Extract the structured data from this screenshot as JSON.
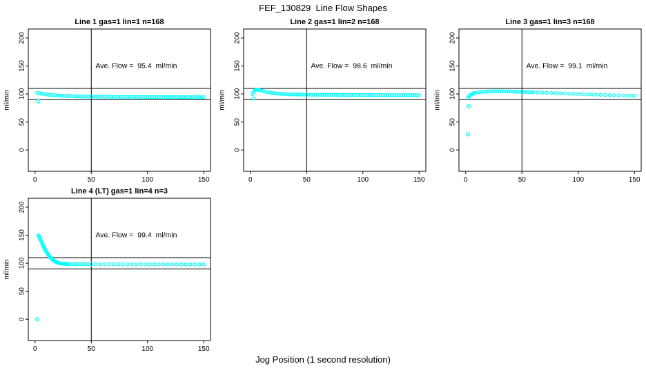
{
  "title": "FEF_130829  Line Flow Shapes",
  "xlabel": "Jog Position (1 second resolution)",
  "marker_color": "#00FFFF",
  "axis_color": "#000000",
  "chart_data": [
    {
      "type": "scatter",
      "title": "Line 1 gas=1 lin=1 n=168",
      "annotation": "Ave. Flow =  95.4  ml/min",
      "ave_flow_ml_min": 95.4,
      "ylabel": "ml/min",
      "x_ticks": [
        0,
        50,
        100,
        150
      ],
      "y_ticks": [
        0,
        50,
        100,
        150,
        200
      ],
      "xlim": [
        -6,
        156
      ],
      "ylim": [
        -38,
        216
      ],
      "hlines": [
        90,
        110
      ],
      "vline": 50,
      "points": [
        [
          2,
          102.1
        ],
        [
          4,
          101.2
        ],
        [
          6,
          100.5
        ],
        [
          8,
          99.9
        ],
        [
          10,
          99.3
        ],
        [
          12,
          98.8
        ],
        [
          14,
          98.3
        ],
        [
          16,
          97.9
        ],
        [
          18,
          97.6
        ],
        [
          20,
          97.3
        ],
        [
          22,
          97.0
        ],
        [
          24,
          96.8
        ],
        [
          26,
          96.6
        ],
        [
          28,
          96.4
        ],
        [
          30,
          96.2
        ],
        [
          32,
          96.1
        ],
        [
          34,
          96.0
        ],
        [
          36,
          95.8
        ],
        [
          38,
          95.7
        ],
        [
          40,
          95.7
        ],
        [
          42,
          95.6
        ],
        [
          44,
          95.5
        ],
        [
          46,
          95.4
        ],
        [
          48,
          95.4
        ],
        [
          50,
          95.3
        ],
        [
          52,
          95.3
        ],
        [
          54,
          95.2
        ],
        [
          56,
          95.2
        ],
        [
          58,
          95.2
        ],
        [
          60,
          95.1
        ],
        [
          62,
          95.1
        ],
        [
          64,
          95.1
        ],
        [
          66,
          95.0
        ],
        [
          68,
          95.0
        ],
        [
          70,
          95.0
        ],
        [
          72,
          95.0
        ],
        [
          74,
          94.9
        ],
        [
          76,
          94.9
        ],
        [
          78,
          95.0
        ],
        [
          80,
          94.9
        ],
        [
          82,
          94.8
        ],
        [
          84,
          94.9
        ],
        [
          86,
          94.8
        ],
        [
          88,
          94.8
        ],
        [
          90,
          94.9
        ],
        [
          92,
          94.8
        ],
        [
          94,
          94.7
        ],
        [
          96,
          94.8
        ],
        [
          98,
          94.7
        ],
        [
          100,
          94.7
        ],
        [
          102,
          94.8
        ],
        [
          104,
          94.7
        ],
        [
          106,
          94.6
        ],
        [
          108,
          94.7
        ],
        [
          110,
          94.6
        ],
        [
          112,
          94.6
        ],
        [
          114,
          94.7
        ],
        [
          116,
          94.6
        ],
        [
          118,
          94.5
        ],
        [
          120,
          94.6
        ],
        [
          122,
          94.5
        ],
        [
          124,
          94.5
        ],
        [
          126,
          94.6
        ],
        [
          128,
          94.5
        ],
        [
          130,
          94.4
        ],
        [
          132,
          94.5
        ],
        [
          134,
          94.4
        ],
        [
          136,
          94.5
        ],
        [
          138,
          94.4
        ],
        [
          140,
          94.4
        ],
        [
          142,
          94.5
        ],
        [
          144,
          94.4
        ],
        [
          146,
          94.3
        ],
        [
          148,
          94.4
        ],
        [
          150,
          94.4
        ]
      ],
      "outliers": [
        [
          3,
          87
        ]
      ]
    },
    {
      "type": "scatter",
      "title": "Line 2 gas=1 lin=2 n=168",
      "annotation": "Ave. Flow =  98.6  ml/min",
      "ave_flow_ml_min": 98.6,
      "ylabel": "ml/min",
      "x_ticks": [
        0,
        50,
        100,
        150
      ],
      "y_ticks": [
        0,
        50,
        100,
        150,
        200
      ],
      "xlim": [
        -6,
        156
      ],
      "ylim": [
        -38,
        216
      ],
      "hlines": [
        90,
        110
      ],
      "vline": 50,
      "points": [
        [
          2,
          99.8
        ],
        [
          3,
          103.5
        ],
        [
          4,
          106.2
        ],
        [
          5,
          107.6
        ],
        [
          6,
          108.0
        ],
        [
          7,
          107.7
        ],
        [
          8,
          107.2
        ],
        [
          10,
          106.0
        ],
        [
          12,
          104.8
        ],
        [
          14,
          103.8
        ],
        [
          16,
          102.9
        ],
        [
          18,
          102.2
        ],
        [
          20,
          101.6
        ],
        [
          22,
          101.1
        ],
        [
          24,
          100.7
        ],
        [
          26,
          100.3
        ],
        [
          28,
          100.1
        ],
        [
          30,
          99.8
        ],
        [
          32,
          99.6
        ],
        [
          34,
          99.5
        ],
        [
          36,
          99.3
        ],
        [
          38,
          99.2
        ],
        [
          40,
          99.1
        ],
        [
          42,
          99.0
        ],
        [
          44,
          99.0
        ],
        [
          46,
          98.9
        ],
        [
          48,
          98.9
        ],
        [
          50,
          98.8
        ],
        [
          52,
          98.8
        ],
        [
          54,
          98.7
        ],
        [
          56,
          98.7
        ],
        [
          58,
          98.7
        ],
        [
          60,
          98.6
        ],
        [
          62,
          98.6
        ],
        [
          64,
          98.6
        ],
        [
          66,
          98.6
        ],
        [
          68,
          98.5
        ],
        [
          70,
          98.5
        ],
        [
          72,
          98.5
        ],
        [
          74,
          98.5
        ],
        [
          76,
          98.5
        ],
        [
          78,
          98.4
        ],
        [
          80,
          98.4
        ],
        [
          82,
          98.4
        ],
        [
          84,
          98.4
        ],
        [
          86,
          98.4
        ],
        [
          88,
          98.3
        ],
        [
          90,
          98.3
        ],
        [
          92,
          98.3
        ],
        [
          94,
          98.3
        ],
        [
          96,
          98.3
        ],
        [
          98,
          98.3
        ],
        [
          100,
          98.2
        ],
        [
          102,
          98.2
        ],
        [
          104,
          98.2
        ],
        [
          106,
          98.2
        ],
        [
          108,
          98.2
        ],
        [
          110,
          98.2
        ],
        [
          112,
          98.1
        ],
        [
          114,
          98.1
        ],
        [
          116,
          98.1
        ],
        [
          118,
          98.1
        ],
        [
          120,
          98.1
        ],
        [
          122,
          98.1
        ],
        [
          124,
          98.0
        ],
        [
          126,
          98.0
        ],
        [
          128,
          98.0
        ],
        [
          130,
          98.0
        ],
        [
          132,
          98.0
        ],
        [
          134,
          98.0
        ],
        [
          136,
          97.9
        ],
        [
          138,
          97.9
        ],
        [
          140,
          97.9
        ],
        [
          142,
          97.9
        ],
        [
          144,
          97.9
        ],
        [
          146,
          97.9
        ],
        [
          148,
          97.8
        ],
        [
          150,
          97.8
        ]
      ],
      "outliers": [
        [
          3,
          92
        ]
      ]
    },
    {
      "type": "scatter",
      "title": "Line 3 gas=1 lin=3 n=168",
      "annotation": "Ave. Flow =  99.1  ml/min",
      "ave_flow_ml_min": 99.1,
      "ylabel": "ml/min",
      "x_ticks": [
        0,
        50,
        100,
        150
      ],
      "y_ticks": [
        0,
        50,
        100,
        150,
        200
      ],
      "xlim": [
        -6,
        156
      ],
      "ylim": [
        -38,
        216
      ],
      "hlines": [
        90,
        110
      ],
      "vline": 50,
      "points": [
        [
          2,
          93.0
        ],
        [
          3,
          95.8
        ],
        [
          4,
          97.8
        ],
        [
          5,
          99.2
        ],
        [
          6,
          100.3
        ],
        [
          7,
          101.1
        ],
        [
          8,
          101.8
        ],
        [
          10,
          102.7
        ],
        [
          12,
          103.3
        ],
        [
          14,
          103.8
        ],
        [
          16,
          104.1
        ],
        [
          18,
          104.3
        ],
        [
          20,
          104.5
        ],
        [
          22,
          104.6
        ],
        [
          24,
          104.7
        ],
        [
          26,
          104.7
        ],
        [
          28,
          104.8
        ],
        [
          30,
          104.8
        ],
        [
          32,
          104.7
        ],
        [
          34,
          104.7
        ],
        [
          36,
          104.6
        ],
        [
          38,
          104.5
        ],
        [
          40,
          104.4
        ],
        [
          42,
          104.3
        ],
        [
          44,
          104.2
        ],
        [
          46,
          104.0
        ],
        [
          48,
          103.9
        ],
        [
          50,
          103.8
        ],
        [
          52,
          103.6
        ],
        [
          54,
          103.5
        ],
        [
          56,
          103.3
        ],
        [
          58,
          103.2
        ],
        [
          60,
          103.0
        ],
        [
          64,
          102.7
        ],
        [
          68,
          102.4
        ],
        [
          72,
          102.1
        ],
        [
          76,
          101.8
        ],
        [
          80,
          101.5
        ],
        [
          84,
          101.2
        ],
        [
          88,
          100.9
        ],
        [
          92,
          100.6
        ],
        [
          96,
          100.3
        ],
        [
          100,
          100.0
        ],
        [
          104,
          99.7
        ],
        [
          108,
          99.4
        ],
        [
          112,
          99.1
        ],
        [
          116,
          98.8
        ],
        [
          120,
          98.5
        ],
        [
          124,
          98.2
        ],
        [
          128,
          97.9
        ],
        [
          132,
          97.7
        ],
        [
          136,
          97.4
        ],
        [
          140,
          97.2
        ],
        [
          144,
          96.9
        ],
        [
          148,
          96.7
        ],
        [
          150,
          96.6
        ]
      ],
      "outliers": [
        [
          3,
          78
        ],
        [
          2,
          28
        ]
      ]
    },
    {
      "type": "scatter",
      "title": "Line 4 (LT) gas=1 lin=4 n=3",
      "annotation": "Ave. Flow =  99.4  ml/min",
      "ave_flow_ml_min": 99.4,
      "ylabel": "ml/min",
      "x_ticks": [
        0,
        50,
        100,
        150
      ],
      "y_ticks": [
        0,
        50,
        100,
        150,
        200
      ],
      "xlim": [
        -6,
        156
      ],
      "ylim": [
        -38,
        216
      ],
      "hlines": [
        90,
        110
      ],
      "vline": 50,
      "points": [
        [
          3,
          150
        ],
        [
          3.5,
          148
        ],
        [
          4,
          146
        ],
        [
          4.5,
          144
        ],
        [
          5,
          141.5
        ],
        [
          5.5,
          139
        ],
        [
          6,
          137
        ],
        [
          6.5,
          134.5
        ],
        [
          7,
          132.5
        ],
        [
          7.5,
          130.5
        ],
        [
          8,
          128.5
        ],
        [
          8.5,
          126.5
        ],
        [
          9,
          124.5
        ],
        [
          9.5,
          122.7
        ],
        [
          10,
          121
        ],
        [
          10.5,
          119.2
        ],
        [
          11,
          117.6
        ],
        [
          11.5,
          116
        ],
        [
          12,
          114.5
        ],
        [
          12.5,
          113.1
        ],
        [
          13,
          111.8
        ],
        [
          13.5,
          110.6
        ],
        [
          14,
          109.5
        ],
        [
          14.5,
          108.4
        ],
        [
          15,
          107.4
        ],
        [
          15.5,
          106.5
        ],
        [
          16,
          105.7
        ],
        [
          16.5,
          104.9
        ],
        [
          17,
          104.2
        ],
        [
          17.5,
          103.6
        ],
        [
          18,
          103.0
        ],
        [
          18.5,
          102.5
        ],
        [
          19,
          102.0
        ],
        [
          19.5,
          101.6
        ],
        [
          20,
          101.2
        ],
        [
          21,
          100.6
        ],
        [
          22,
          100.1
        ],
        [
          23,
          99.7
        ],
        [
          24,
          99.4
        ],
        [
          25,
          99.2
        ],
        [
          26,
          99.0
        ],
        [
          27,
          98.8
        ],
        [
          28,
          98.7
        ],
        [
          29,
          98.6
        ],
        [
          30,
          98.6
        ],
        [
          32,
          98.5
        ],
        [
          34,
          98.5
        ],
        [
          36,
          98.4
        ],
        [
          38,
          98.4
        ],
        [
          40,
          98.4
        ],
        [
          42,
          98.3
        ],
        [
          44,
          98.3
        ],
        [
          46,
          98.3
        ],
        [
          48,
          98.3
        ],
        [
          50,
          98.3
        ],
        [
          54,
          98.3
        ],
        [
          58,
          98.2
        ],
        [
          62,
          98.2
        ],
        [
          66,
          98.2
        ],
        [
          70,
          98.2
        ],
        [
          74,
          98.2
        ],
        [
          78,
          98.1
        ],
        [
          82,
          98.1
        ],
        [
          86,
          98.1
        ],
        [
          90,
          98.1
        ],
        [
          94,
          98.1
        ],
        [
          98,
          98.1
        ],
        [
          102,
          98.0
        ],
        [
          106,
          98.0
        ],
        [
          110,
          98.0
        ],
        [
          114,
          98.0
        ],
        [
          118,
          98.0
        ],
        [
          122,
          98.0
        ],
        [
          126,
          97.9
        ],
        [
          130,
          97.9
        ],
        [
          134,
          97.9
        ],
        [
          138,
          97.9
        ],
        [
          142,
          97.9
        ],
        [
          146,
          97.9
        ],
        [
          150,
          97.9
        ]
      ],
      "outliers": [
        [
          2,
          0
        ]
      ]
    }
  ]
}
